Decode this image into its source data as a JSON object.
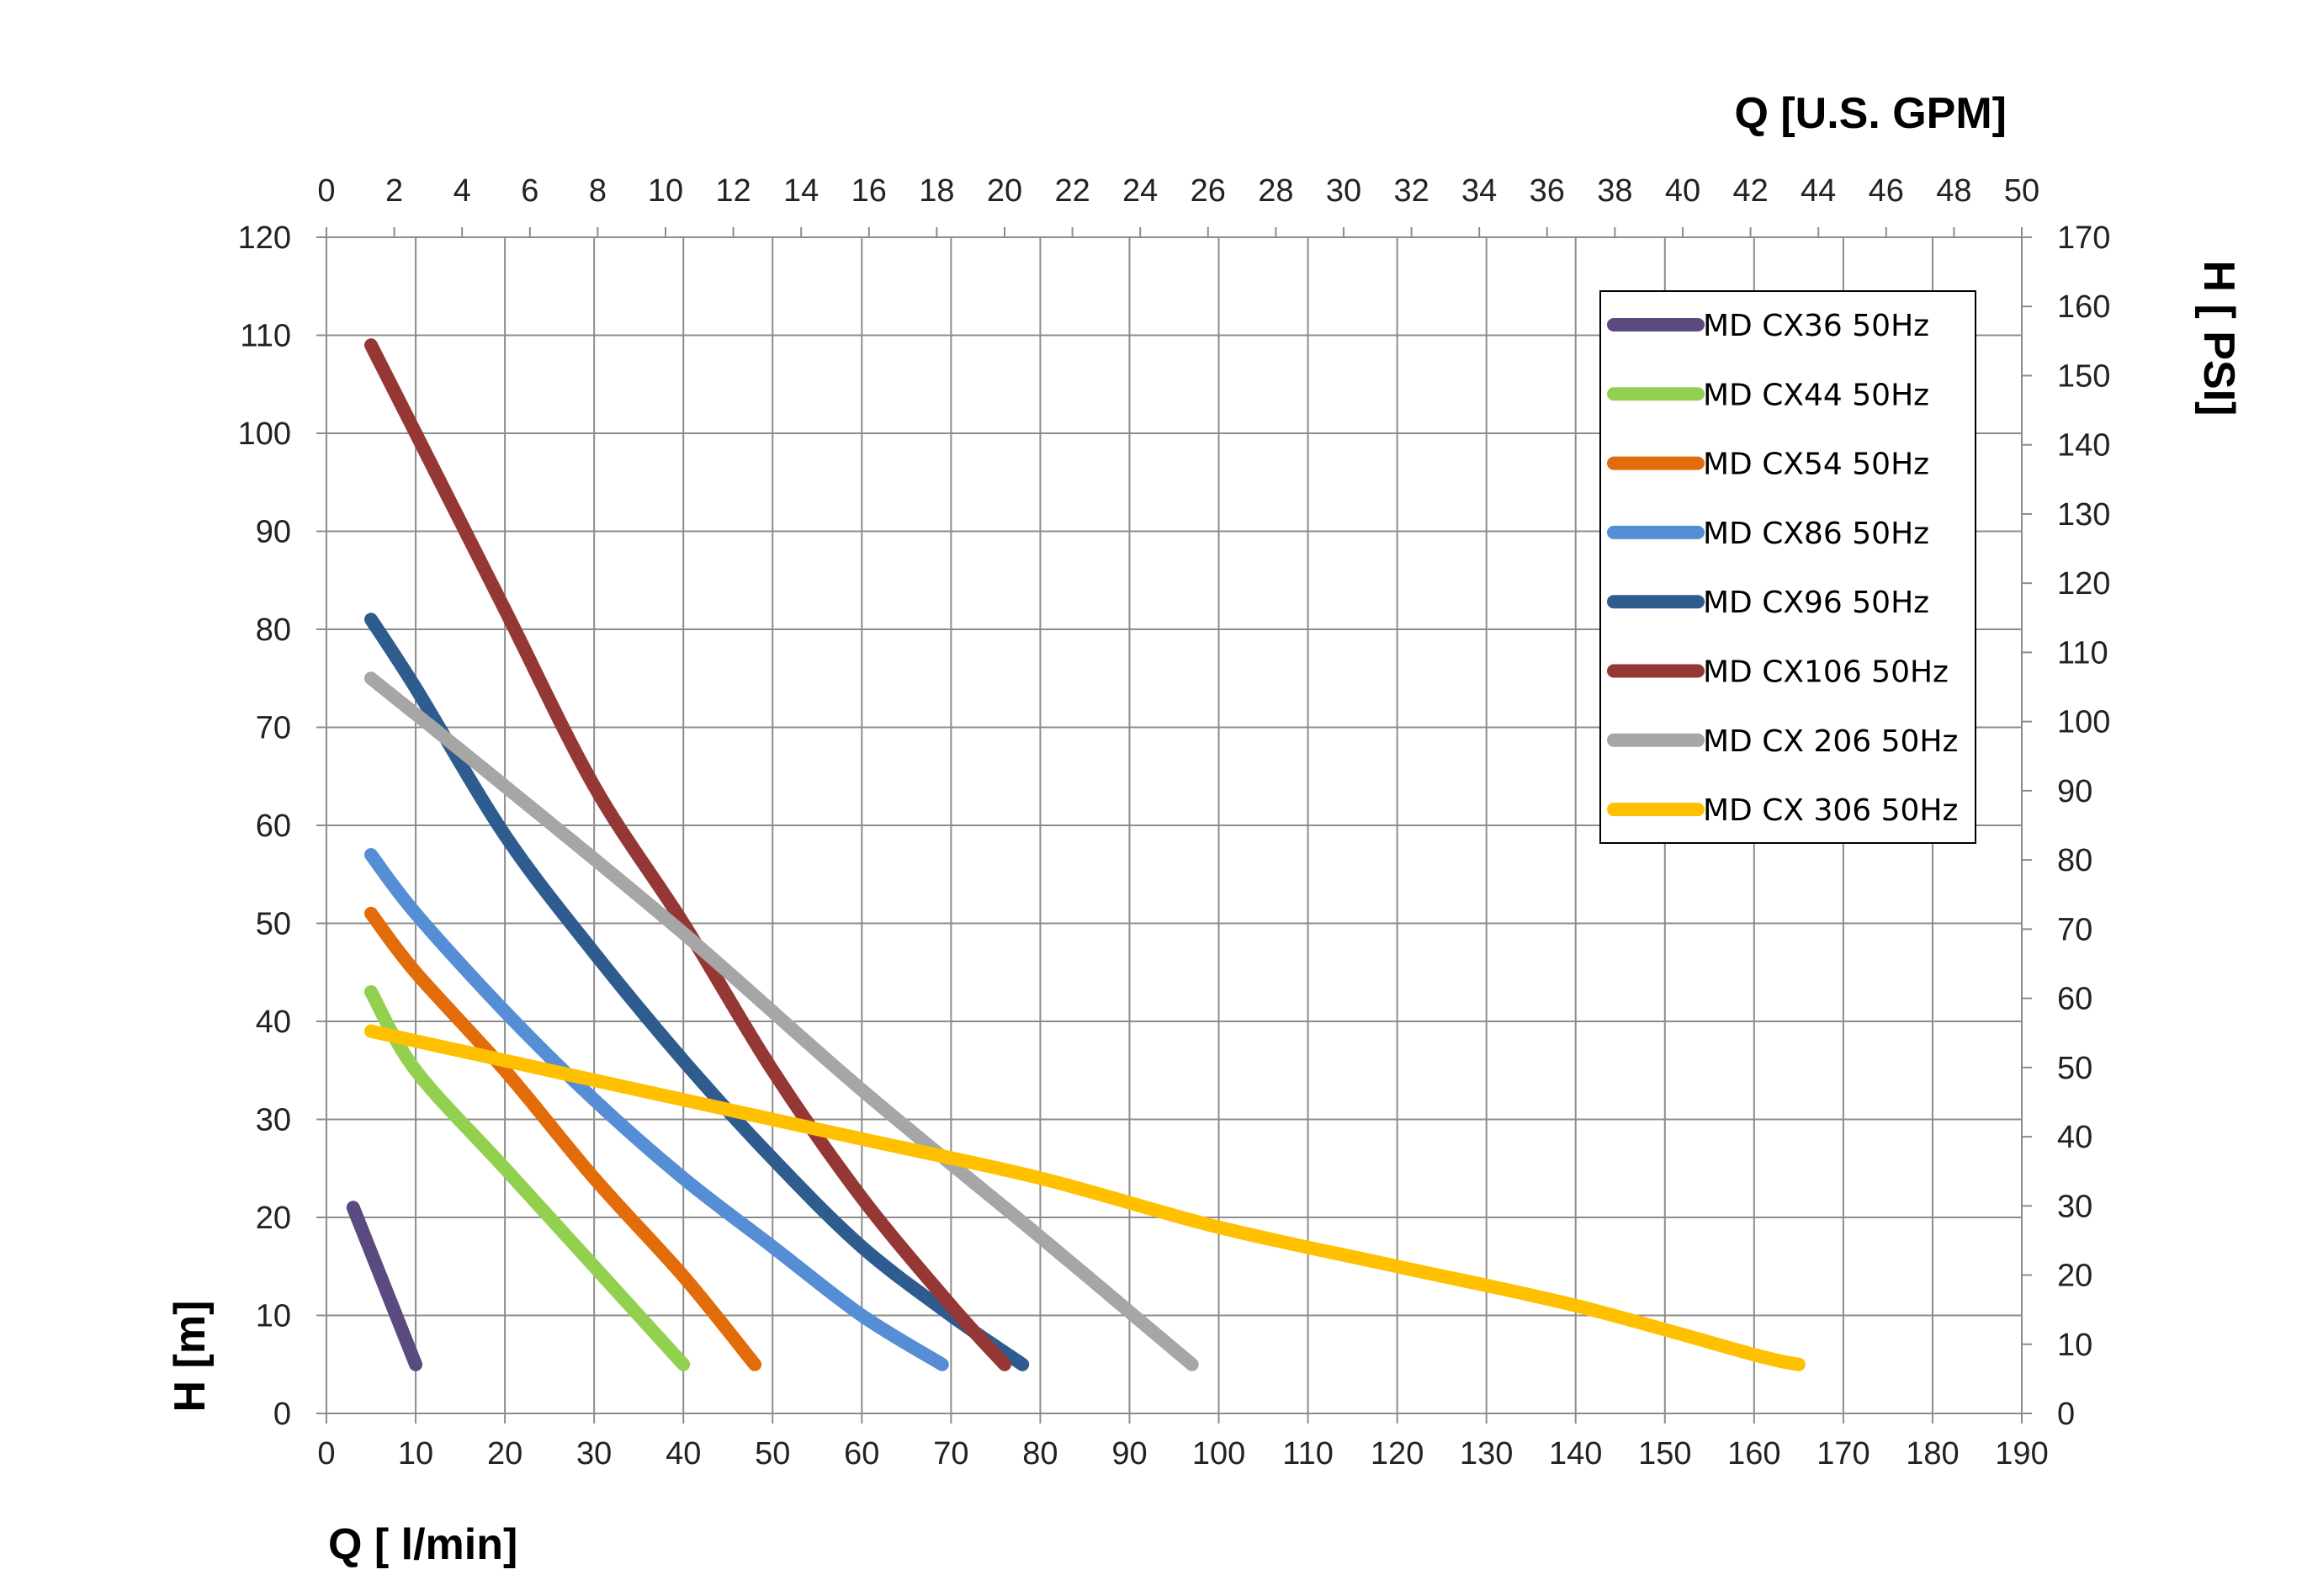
{
  "chart_data": {
    "type": "line",
    "title": "",
    "xlabel": "Q [ l/min]",
    "ylabel": "H [m]",
    "x2label": "Q  [U.S. GPM]",
    "y2label": "H [ PSI]",
    "xlim": [
      0,
      190
    ],
    "ylim": [
      0,
      120
    ],
    "x2lim": [
      0,
      50
    ],
    "y2lim": [
      0,
      170
    ],
    "x_ticks": [
      "0",
      "10",
      "20",
      "30",
      "40",
      "50",
      "60",
      "70",
      "80",
      "90",
      "100",
      "110",
      "120",
      "130",
      "140",
      "150",
      "160",
      "170",
      "180",
      "190"
    ],
    "y_ticks": [
      "0",
      "10",
      "20",
      "30",
      "40",
      "50",
      "60",
      "70",
      "80",
      "90",
      "100",
      "110",
      "120"
    ],
    "x2_ticks": [
      "0",
      "2",
      "4",
      "6",
      "8",
      "10",
      "12",
      "14",
      "16",
      "18",
      "20",
      "22",
      "24",
      "26",
      "28",
      "30",
      "32",
      "34",
      "36",
      "38",
      "40",
      "42",
      "44",
      "46",
      "48",
      "50"
    ],
    "y2_ticks": [
      "0",
      "10",
      "20",
      "30",
      "40",
      "50",
      "60",
      "70",
      "80",
      "90",
      "100",
      "110",
      "120",
      "130",
      "140",
      "150",
      "160",
      "170"
    ],
    "grid": true,
    "legend_position": "top-right",
    "series": [
      {
        "name": "MD CX36 50Hz",
        "color": "#5b4a7f",
        "points": [
          [
            3,
            21
          ],
          [
            10,
            5
          ]
        ]
      },
      {
        "name": "MD CX44 50Hz",
        "color": "#92d050",
        "points": [
          [
            5,
            43
          ],
          [
            10,
            35
          ],
          [
            20,
            25
          ],
          [
            30,
            15
          ],
          [
            40,
            5
          ]
        ]
      },
      {
        "name": "MD CX54 50Hz",
        "color": "#e36c0a",
        "points": [
          [
            5,
            51
          ],
          [
            10,
            45
          ],
          [
            20,
            35
          ],
          [
            30,
            24
          ],
          [
            40,
            14
          ],
          [
            48,
            5
          ]
        ]
      },
      {
        "name": "MD CX86 50Hz",
        "color": "#558ed5",
        "points": [
          [
            5,
            57
          ],
          [
            10,
            51
          ],
          [
            20,
            41
          ],
          [
            30,
            32
          ],
          [
            40,
            24
          ],
          [
            50,
            17
          ],
          [
            60,
            10
          ],
          [
            69,
            5
          ]
        ]
      },
      {
        "name": "MD CX96 50Hz",
        "color": "#2e5c8f",
        "points": [
          [
            5,
            81
          ],
          [
            10,
            74
          ],
          [
            20,
            59
          ],
          [
            30,
            47
          ],
          [
            40,
            36
          ],
          [
            50,
            26
          ],
          [
            60,
            17
          ],
          [
            70,
            10
          ],
          [
            78,
            5
          ]
        ]
      },
      {
        "name": "MD CX106 50Hz",
        "color": "#953735",
        "points": [
          [
            5,
            109
          ],
          [
            10,
            100
          ],
          [
            20,
            82
          ],
          [
            30,
            64
          ],
          [
            40,
            50
          ],
          [
            50,
            35
          ],
          [
            60,
            22
          ],
          [
            70,
            11
          ],
          [
            76,
            5
          ]
        ]
      },
      {
        "name": "MD CX 206 50Hz",
        "color": "#a6a6a6",
        "points": [
          [
            5,
            75
          ],
          [
            20,
            64
          ],
          [
            40,
            49
          ],
          [
            60,
            33
          ],
          [
            80,
            18
          ],
          [
            97,
            5
          ]
        ]
      },
      {
        "name": "MD CX 306 50Hz",
        "color": "#ffc000",
        "points": [
          [
            5,
            39
          ],
          [
            20,
            36
          ],
          [
            40,
            32
          ],
          [
            60,
            28
          ],
          [
            80,
            24
          ],
          [
            100,
            19
          ],
          [
            120,
            15
          ],
          [
            140,
            11
          ],
          [
            160,
            6
          ],
          [
            165,
            5
          ]
        ]
      }
    ]
  }
}
